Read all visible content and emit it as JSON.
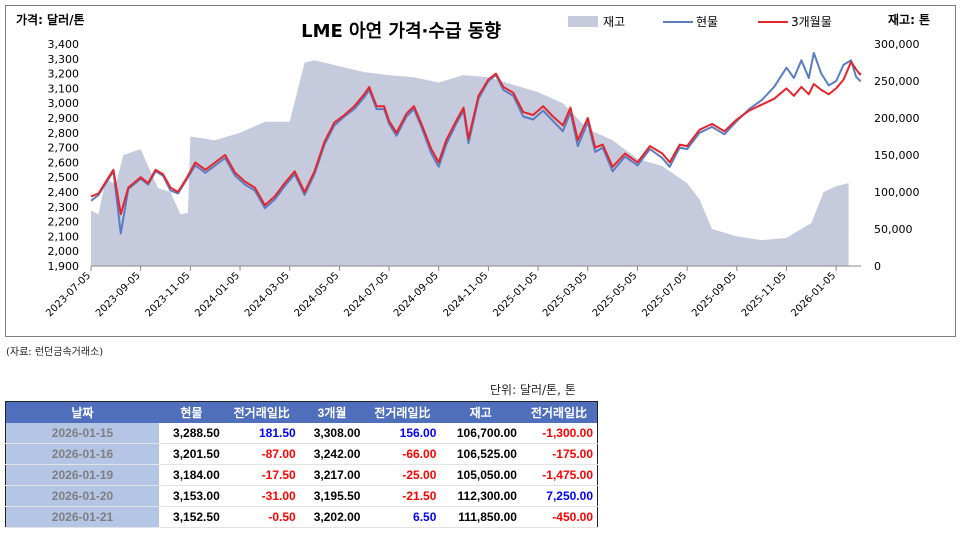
{
  "chart_data": {
    "type": "line",
    "title": "LME 아연 가격·수급 동향",
    "left_axis_label": "가격: 달러/톤",
    "right_axis_label": "재고: 톤",
    "legend": [
      "재고",
      "현물",
      "3개월물"
    ],
    "legend_placement": "top-right",
    "left_ylim": [
      1900,
      3400
    ],
    "left_ticks": [
      "1,900",
      "2,000",
      "2,100",
      "2,200",
      "2,300",
      "2,400",
      "2,500",
      "2,600",
      "2,700",
      "2,800",
      "2,900",
      "3,000",
      "3,100",
      "3,200",
      "3,300",
      "3,400"
    ],
    "right_ylim": [
      0,
      300000
    ],
    "right_ticks": [
      "0",
      "50,000",
      "100,000",
      "150,000",
      "200,000",
      "250,000",
      "300,000"
    ],
    "x_ticks": [
      "2023-07-05",
      "2023-09-05",
      "2023-11-05",
      "2024-01-05",
      "2024-03-05",
      "2024-05-05",
      "2024-07-05",
      "2024-09-05",
      "2024-11-05",
      "2025-01-05",
      "2025-03-05",
      "2025-05-05",
      "2025-07-05",
      "2025-09-05",
      "2025-11-05",
      "2026-01-05"
    ],
    "x_start": "2023-07-05",
    "x_end": "2026-01-21",
    "colors": {
      "stock": "#c5cbdc",
      "spot": "#5a7dc2",
      "3m": "#e8242b"
    },
    "series": [
      {
        "name": "재고",
        "axis": "right",
        "points": [
          [
            0,
            75000
          ],
          [
            0.3,
            70000
          ],
          [
            0.6,
            118000
          ],
          [
            1.0,
            110000
          ],
          [
            1.3,
            150000
          ],
          [
            2.0,
            158000
          ],
          [
            2.3,
            135000
          ],
          [
            2.7,
            105000
          ],
          [
            3.2,
            100000
          ],
          [
            3.6,
            70000
          ],
          [
            3.9,
            72000
          ],
          [
            4.0,
            175000
          ],
          [
            5.0,
            170000
          ],
          [
            6.0,
            180000
          ],
          [
            7.0,
            195000
          ],
          [
            8.0,
            195000
          ],
          [
            8.6,
            275000
          ],
          [
            9.0,
            278000
          ],
          [
            10.0,
            270000
          ],
          [
            11.0,
            262000
          ],
          [
            12.0,
            258000
          ],
          [
            13.0,
            255000
          ],
          [
            14.0,
            248000
          ],
          [
            15.0,
            258000
          ],
          [
            16.0,
            255000
          ],
          [
            17.0,
            245000
          ],
          [
            18.0,
            235000
          ],
          [
            19.0,
            220000
          ],
          [
            20.0,
            185000
          ],
          [
            21.0,
            170000
          ],
          [
            22.0,
            145000
          ],
          [
            23.0,
            135000
          ],
          [
            24.0,
            112000
          ],
          [
            24.5,
            90000
          ],
          [
            25.0,
            50000
          ],
          [
            26.0,
            40000
          ],
          [
            27.0,
            35000
          ],
          [
            28.0,
            38000
          ],
          [
            29.0,
            58000
          ],
          [
            29.5,
            100000
          ],
          [
            30.0,
            108000
          ],
          [
            30.5,
            112000
          ]
        ]
      },
      {
        "name": "현물",
        "axis": "left",
        "points": [
          [
            0,
            2340
          ],
          [
            0.3,
            2380
          ],
          [
            0.6,
            2460
          ],
          [
            0.9,
            2540
          ],
          [
            1.2,
            2120
          ],
          [
            1.5,
            2420
          ],
          [
            2.0,
            2490
          ],
          [
            2.3,
            2450
          ],
          [
            2.6,
            2540
          ],
          [
            2.9,
            2510
          ],
          [
            3.2,
            2410
          ],
          [
            3.5,
            2390
          ],
          [
            3.8,
            2470
          ],
          [
            4.2,
            2580
          ],
          [
            4.6,
            2530
          ],
          [
            5.0,
            2580
          ],
          [
            5.4,
            2630
          ],
          [
            5.8,
            2510
          ],
          [
            6.2,
            2450
          ],
          [
            6.6,
            2410
          ],
          [
            7.0,
            2290
          ],
          [
            7.4,
            2350
          ],
          [
            7.8,
            2440
          ],
          [
            8.2,
            2520
          ],
          [
            8.6,
            2380
          ],
          [
            9.0,
            2520
          ],
          [
            9.4,
            2720
          ],
          [
            9.8,
            2850
          ],
          [
            10.2,
            2910
          ],
          [
            10.6,
            2960
          ],
          [
            11.0,
            3040
          ],
          [
            11.2,
            3090
          ],
          [
            11.5,
            2960
          ],
          [
            11.8,
            2960
          ],
          [
            12.0,
            2860
          ],
          [
            12.3,
            2780
          ],
          [
            12.7,
            2910
          ],
          [
            13.0,
            2960
          ],
          [
            13.3,
            2840
          ],
          [
            13.7,
            2660
          ],
          [
            14.0,
            2570
          ],
          [
            14.3,
            2720
          ],
          [
            14.7,
            2860
          ],
          [
            15.0,
            2950
          ],
          [
            15.2,
            2730
          ],
          [
            15.6,
            3030
          ],
          [
            16.0,
            3150
          ],
          [
            16.3,
            3190
          ],
          [
            16.6,
            3090
          ],
          [
            17.0,
            3050
          ],
          [
            17.4,
            2910
          ],
          [
            17.8,
            2890
          ],
          [
            18.2,
            2950
          ],
          [
            18.6,
            2880
          ],
          [
            19.0,
            2810
          ],
          [
            19.3,
            2940
          ],
          [
            19.6,
            2710
          ],
          [
            20.0,
            2870
          ],
          [
            20.3,
            2670
          ],
          [
            20.6,
            2700
          ],
          [
            21.0,
            2540
          ],
          [
            21.5,
            2640
          ],
          [
            22.0,
            2580
          ],
          [
            22.5,
            2690
          ],
          [
            23.0,
            2630
          ],
          [
            23.3,
            2570
          ],
          [
            23.7,
            2700
          ],
          [
            24.0,
            2690
          ],
          [
            24.5,
            2800
          ],
          [
            25.0,
            2840
          ],
          [
            25.5,
            2790
          ],
          [
            26.0,
            2880
          ],
          [
            26.5,
            2960
          ],
          [
            27.0,
            3020
          ],
          [
            27.5,
            3110
          ],
          [
            28.0,
            3240
          ],
          [
            28.3,
            3170
          ],
          [
            28.6,
            3290
          ],
          [
            28.9,
            3170
          ],
          [
            29.1,
            3340
          ],
          [
            29.4,
            3200
          ],
          [
            29.7,
            3120
          ],
          [
            30.0,
            3150
          ],
          [
            30.3,
            3260
          ],
          [
            30.6,
            3290
          ],
          [
            30.8,
            3180
          ],
          [
            30.95,
            3153
          ],
          [
            31.0,
            3152
          ]
        ]
      },
      {
        "name": "3개월물",
        "axis": "left",
        "points": [
          [
            0,
            2370
          ],
          [
            0.3,
            2390
          ],
          [
            0.6,
            2470
          ],
          [
            0.9,
            2550
          ],
          [
            1.2,
            2250
          ],
          [
            1.5,
            2430
          ],
          [
            2.0,
            2500
          ],
          [
            2.3,
            2460
          ],
          [
            2.6,
            2550
          ],
          [
            2.9,
            2520
          ],
          [
            3.2,
            2430
          ],
          [
            3.5,
            2400
          ],
          [
            3.8,
            2480
          ],
          [
            4.2,
            2600
          ],
          [
            4.6,
            2550
          ],
          [
            5.0,
            2600
          ],
          [
            5.4,
            2650
          ],
          [
            5.8,
            2530
          ],
          [
            6.2,
            2470
          ],
          [
            6.6,
            2430
          ],
          [
            7.0,
            2310
          ],
          [
            7.4,
            2370
          ],
          [
            7.8,
            2460
          ],
          [
            8.2,
            2540
          ],
          [
            8.6,
            2400
          ],
          [
            9.0,
            2540
          ],
          [
            9.4,
            2740
          ],
          [
            9.8,
            2870
          ],
          [
            10.2,
            2920
          ],
          [
            10.6,
            2980
          ],
          [
            11.0,
            3060
          ],
          [
            11.2,
            3110
          ],
          [
            11.5,
            2980
          ],
          [
            11.8,
            2980
          ],
          [
            12.0,
            2880
          ],
          [
            12.3,
            2800
          ],
          [
            12.7,
            2930
          ],
          [
            13.0,
            2980
          ],
          [
            13.3,
            2860
          ],
          [
            13.7,
            2690
          ],
          [
            14.0,
            2600
          ],
          [
            14.3,
            2750
          ],
          [
            14.7,
            2880
          ],
          [
            15.0,
            2970
          ],
          [
            15.2,
            2760
          ],
          [
            15.6,
            3050
          ],
          [
            16.0,
            3160
          ],
          [
            16.3,
            3200
          ],
          [
            16.6,
            3110
          ],
          [
            17.0,
            3070
          ],
          [
            17.4,
            2940
          ],
          [
            17.8,
            2920
          ],
          [
            18.2,
            2980
          ],
          [
            18.6,
            2910
          ],
          [
            19.0,
            2850
          ],
          [
            19.3,
            2970
          ],
          [
            19.6,
            2750
          ],
          [
            20.0,
            2900
          ],
          [
            20.3,
            2700
          ],
          [
            20.6,
            2720
          ],
          [
            21.0,
            2570
          ],
          [
            21.5,
            2660
          ],
          [
            22.0,
            2600
          ],
          [
            22.5,
            2710
          ],
          [
            23.0,
            2660
          ],
          [
            23.3,
            2600
          ],
          [
            23.7,
            2720
          ],
          [
            24.0,
            2710
          ],
          [
            24.5,
            2820
          ],
          [
            25.0,
            2860
          ],
          [
            25.5,
            2810
          ],
          [
            26.0,
            2890
          ],
          [
            26.5,
            2950
          ],
          [
            27.0,
            2990
          ],
          [
            27.5,
            3030
          ],
          [
            28.0,
            3100
          ],
          [
            28.3,
            3050
          ],
          [
            28.6,
            3110
          ],
          [
            28.9,
            3060
          ],
          [
            29.1,
            3130
          ],
          [
            29.4,
            3090
          ],
          [
            29.7,
            3060
          ],
          [
            30.0,
            3100
          ],
          [
            30.3,
            3160
          ],
          [
            30.6,
            3280
          ],
          [
            30.8,
            3230
          ],
          [
            30.95,
            3195
          ],
          [
            31.0,
            3202
          ]
        ]
      }
    ]
  },
  "source_note": "(자료: 런던금속거래소)",
  "unit_note": "단위: 달러/톤, 톤",
  "table": {
    "headers": [
      "날짜",
      "현물",
      "전거래일比",
      "3개월",
      "전거래일比",
      "재고",
      "전거래일比"
    ],
    "rows": [
      {
        "date": "2026-01-15",
        "spot": "3,288.50",
        "spot_chg": "181.50",
        "spot_sign": "pos",
        "m3": "3,308.00",
        "m3_chg": "156.00",
        "m3_sign": "pos",
        "stock": "106,700.00",
        "stock_chg": "-1,300.00",
        "stock_sign": "neg"
      },
      {
        "date": "2026-01-16",
        "spot": "3,201.50",
        "spot_chg": "-87.00",
        "spot_sign": "neg",
        "m3": "3,242.00",
        "m3_chg": "-66.00",
        "m3_sign": "neg",
        "stock": "106,525.00",
        "stock_chg": "-175.00",
        "stock_sign": "neg"
      },
      {
        "date": "2026-01-19",
        "spot": "3,184.00",
        "spot_chg": "-17.50",
        "spot_sign": "neg",
        "m3": "3,217.00",
        "m3_chg": "-25.00",
        "m3_sign": "neg",
        "stock": "105,050.00",
        "stock_chg": "-1,475.00",
        "stock_sign": "neg"
      },
      {
        "date": "2026-01-20",
        "spot": "3,153.00",
        "spot_chg": "-31.00",
        "spot_sign": "neg",
        "m3": "3,195.50",
        "m3_chg": "-21.50",
        "m3_sign": "neg",
        "stock": "112,300.00",
        "stock_chg": "7,250.00",
        "stock_sign": "pos"
      },
      {
        "date": "2026-01-21",
        "spot": "3,152.50",
        "spot_chg": "-0.50",
        "spot_sign": "neg",
        "m3": "3,202.00",
        "m3_chg": "6.50",
        "m3_sign": "pos",
        "stock": "111,850.00",
        "stock_chg": "-450.00",
        "stock_sign": "neg"
      }
    ]
  }
}
